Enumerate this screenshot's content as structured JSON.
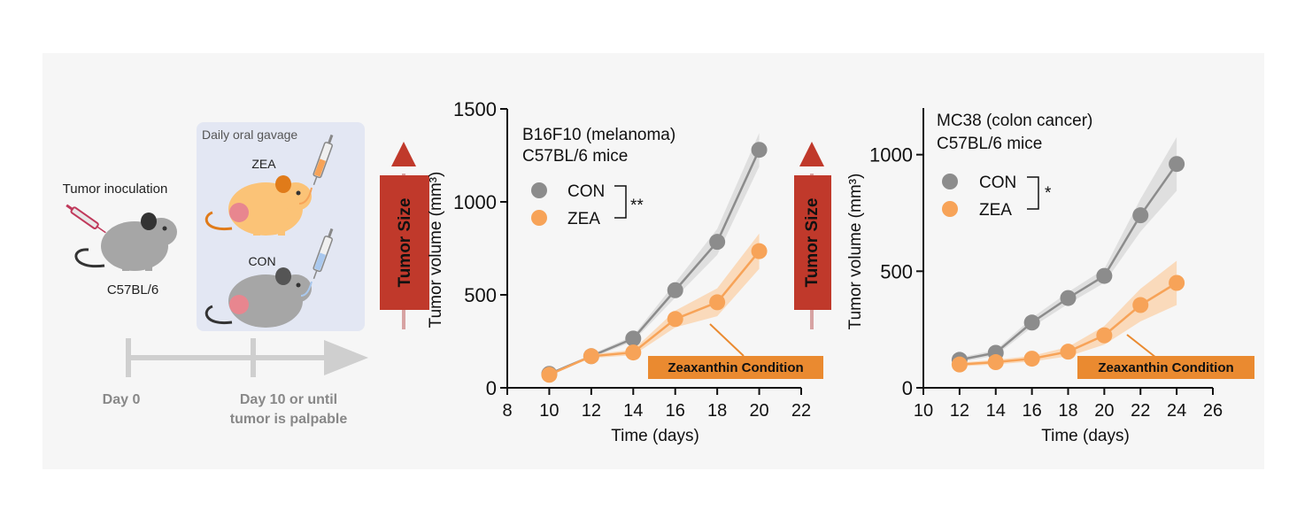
{
  "schematic": {
    "inoculation_label": "Tumor inoculation",
    "strain_label": "C57BL/6",
    "gavage_label": "Daily oral gavage",
    "zea_label": "ZEA",
    "con_label": "CON",
    "day0_label": "Day 0",
    "day10_line1": "Day 10 or until",
    "day10_line2": "tumor is palpable"
  },
  "tumor_size_label": "Tumor Size",
  "colors": {
    "con": "#8c8c8c",
    "zea": "#f7a358",
    "con_band": "#d9d9d9",
    "zea_band": "#fbd3ad",
    "arrow_red": "#c0392b",
    "annotation_box": "#ea8a30",
    "mouse_grey": "#a6a6a6",
    "mouse_orange": "#fbc377",
    "gavage_bg": "#e3e7f3"
  },
  "chart_data": [
    {
      "type": "line",
      "title_line1": "B16F10 (melanoma)",
      "title_line2": "C57BL/6 mice",
      "xlabel": "Time (days)",
      "ylabel": "Tumor volume (mm³)",
      "xlim": [
        8,
        22
      ],
      "ylim": [
        0,
        1500
      ],
      "xticks": [
        8,
        10,
        12,
        14,
        16,
        18,
        20,
        22
      ],
      "yticks": [
        0,
        500,
        1000,
        1500
      ],
      "significance": "**",
      "annotation": "Zeaxanthin Condition",
      "series": [
        {
          "name": "CON",
          "x": [
            10,
            12,
            14,
            16,
            18,
            20
          ],
          "values": [
            75,
            170,
            265,
            525,
            785,
            1280
          ],
          "band": [
            0,
            10,
            15,
            40,
            70,
            90
          ]
        },
        {
          "name": "ZEA",
          "x": [
            10,
            12,
            14,
            16,
            18,
            20
          ],
          "values": [
            70,
            170,
            190,
            370,
            460,
            735
          ],
          "band": [
            0,
            10,
            15,
            45,
            75,
            95
          ]
        }
      ]
    },
    {
      "type": "line",
      "title_line1": "MC38 (colon cancer)",
      "title_line2": "C57BL/6 mice",
      "xlabel": "Time (days)",
      "ylabel": "Tumor volume (mm³)",
      "xlim": [
        10,
        26
      ],
      "ylim": [
        0,
        1200
      ],
      "xticks": [
        10,
        12,
        14,
        16,
        18,
        20,
        22,
        24,
        26
      ],
      "yticks": [
        0,
        500,
        1000
      ],
      "significance": "*",
      "annotation": "Zeaxanthin Condition",
      "series": [
        {
          "name": "CON",
          "x": [
            12,
            14,
            16,
            18,
            20,
            22,
            24
          ],
          "values": [
            120,
            150,
            280,
            385,
            480,
            740,
            960
          ],
          "band": [
            10,
            12,
            20,
            25,
            30,
            70,
            115
          ]
        },
        {
          "name": "ZEA",
          "x": [
            12,
            14,
            16,
            18,
            20,
            22,
            24
          ],
          "values": [
            100,
            110,
            125,
            155,
            225,
            355,
            450
          ],
          "band": [
            8,
            10,
            12,
            20,
            40,
            70,
            95
          ]
        }
      ]
    }
  ]
}
